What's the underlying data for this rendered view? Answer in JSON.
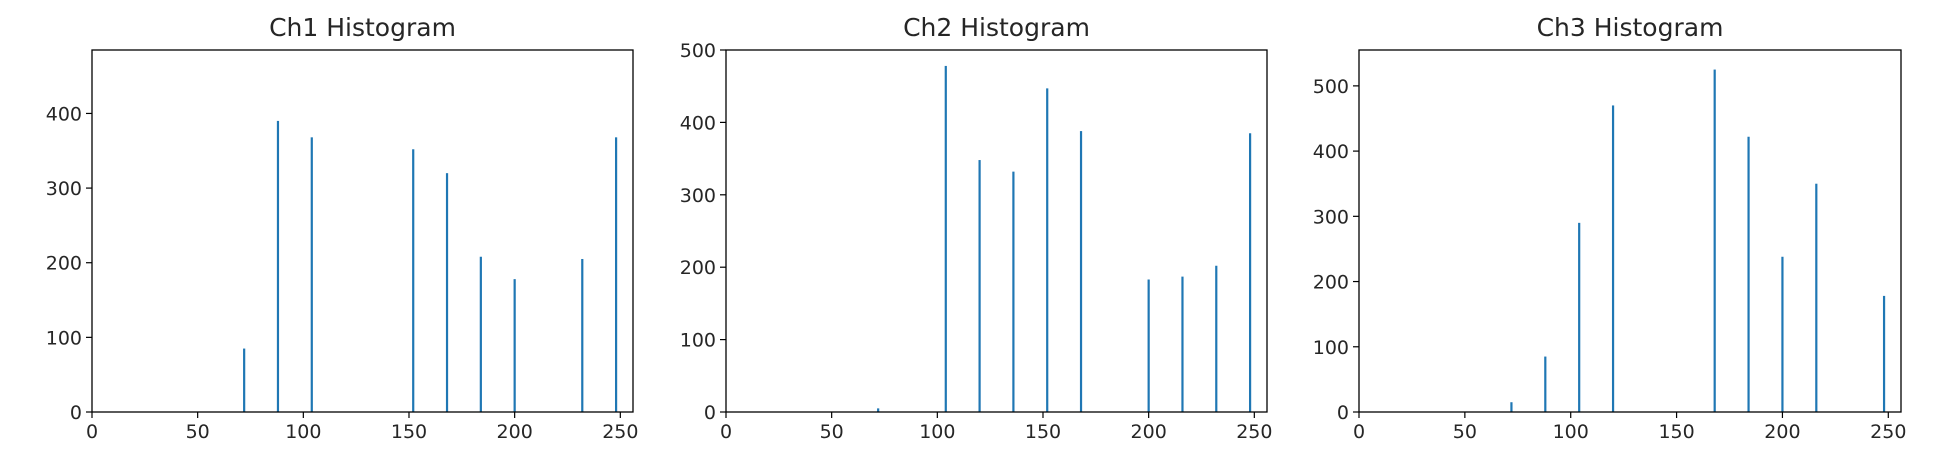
{
  "chart_data": [
    {
      "type": "bar",
      "title": "Ch1 Histogram",
      "xlabel": "",
      "ylabel": "",
      "xlim": [
        0,
        256
      ],
      "ylim": [
        0,
        485
      ],
      "xticks": [
        0,
        50,
        100,
        150,
        200,
        250
      ],
      "yticks": [
        0,
        100,
        200,
        300,
        400
      ],
      "x": [
        72,
        88,
        104,
        152,
        168,
        184,
        200,
        232,
        248
      ],
      "values": [
        85,
        390,
        368,
        352,
        320,
        208,
        178,
        205,
        368
      ],
      "color": "#1f77b4",
      "grid": false
    },
    {
      "type": "bar",
      "title": "Ch2 Histogram",
      "xlabel": "",
      "ylabel": "",
      "xlim": [
        0,
        256
      ],
      "ylim": [
        0,
        500
      ],
      "xticks": [
        0,
        50,
        100,
        150,
        200,
        250
      ],
      "yticks": [
        0,
        100,
        200,
        300,
        400,
        500
      ],
      "x": [
        72,
        104,
        120,
        136,
        152,
        168,
        200,
        216,
        232,
        248
      ],
      "values": [
        5,
        478,
        348,
        332,
        447,
        388,
        183,
        187,
        202,
        385
      ],
      "color": "#1f77b4",
      "grid": false
    },
    {
      "type": "bar",
      "title": "Ch3 Histogram",
      "xlabel": "",
      "ylabel": "",
      "xlim": [
        0,
        256
      ],
      "ylim": [
        0,
        555
      ],
      "xticks": [
        0,
        50,
        100,
        150,
        200,
        250
      ],
      "yticks": [
        0,
        100,
        200,
        300,
        400,
        500
      ],
      "x": [
        72,
        88,
        104,
        120,
        168,
        184,
        200,
        216,
        248
      ],
      "values": [
        15,
        85,
        290,
        470,
        525,
        422,
        238,
        350,
        178
      ],
      "color": "#1f77b4",
      "grid": false
    }
  ]
}
